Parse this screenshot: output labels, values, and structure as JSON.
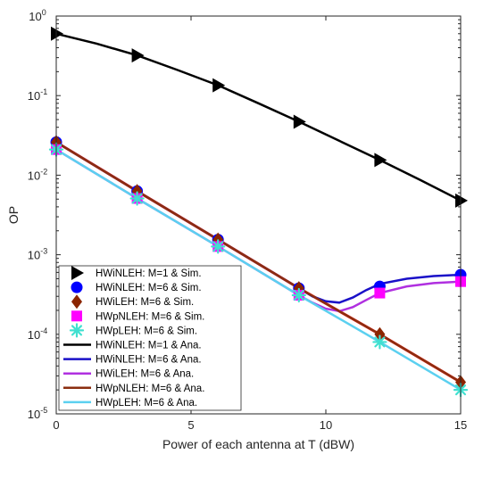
{
  "chart_data": {
    "type": "line",
    "xlabel": "Power of each antenna at T (dBW)",
    "ylabel": "OP",
    "xlim": [
      0,
      15
    ],
    "ylim": [
      1e-05,
      1
    ],
    "yscale": "log",
    "grid": false,
    "legend_position": "bottom-left",
    "x_ticks": [
      0,
      5,
      10,
      15
    ],
    "x_tick_labels": [
      "0",
      "5",
      "10",
      "15"
    ],
    "y_ticks": [
      {
        "value": 1,
        "base": "10",
        "exp": "0"
      },
      {
        "value": 0.1,
        "base": "10",
        "exp": "-1"
      },
      {
        "value": 0.01,
        "base": "10",
        "exp": "-2"
      },
      {
        "value": 0.001,
        "base": "10",
        "exp": "-3"
      },
      {
        "value": 0.0001,
        "base": "10",
        "exp": "-4"
      },
      {
        "value": 1e-05,
        "base": "10",
        "exp": "-5"
      }
    ],
    "marker_series": [
      {
        "name": "HWiNLEH: M=1 & Sim.",
        "marker": "triangle-right",
        "color": "#000000",
        "x": [
          0,
          3,
          6,
          9,
          12,
          15
        ],
        "y": [
          0.6,
          0.32,
          0.135,
          0.047,
          0.0155,
          0.0048
        ]
      },
      {
        "name": "HWiNLEH: M=6 & Sim.",
        "marker": "circle",
        "color": "#0000ff",
        "x": [
          0,
          3,
          6,
          9,
          12,
          15
        ],
        "y": [
          0.026,
          0.0063,
          0.00155,
          0.00038,
          0.0004,
          0.00056
        ]
      },
      {
        "name": "HWiLEH: M=6 & Sim.",
        "marker": "diamond",
        "color": "#8b2500",
        "x": [
          0,
          3,
          6,
          9,
          12,
          15
        ],
        "y": [
          0.026,
          0.0063,
          0.00155,
          0.00038,
          0.0001,
          2.5e-05
        ]
      },
      {
        "name": "HWpNLEH: M=6 & Sim.",
        "marker": "square",
        "color": "#ff00ff",
        "x": [
          0,
          3,
          6,
          9,
          12,
          15
        ],
        "y": [
          0.021,
          0.0051,
          0.00127,
          0.00031,
          0.00033,
          0.00046
        ]
      },
      {
        "name": "HWpLEH: M=6 & Sim.",
        "marker": "asterisk",
        "color": "#40e0d0",
        "x": [
          0,
          3,
          6,
          9,
          12,
          15
        ],
        "y": [
          0.021,
          0.0051,
          0.00127,
          0.00031,
          8e-05,
          2e-05
        ]
      }
    ],
    "line_series": [
      {
        "name": "HWiNLEH: M=1 & Ana.",
        "color": "#000000",
        "x": [
          0,
          1.5,
          3,
          4.5,
          6,
          7.5,
          9,
          10.5,
          12,
          13.5,
          15
        ],
        "y": [
          0.6,
          0.45,
          0.32,
          0.21,
          0.135,
          0.08,
          0.047,
          0.027,
          0.0155,
          0.0087,
          0.0048
        ]
      },
      {
        "name": "HWiNLEH: M=6 & Ana.",
        "color": "#1a10c8",
        "x": [
          0,
          3,
          6,
          9,
          9.5,
          10,
          10.5,
          11,
          11.5,
          12,
          13,
          14,
          15
        ],
        "y": [
          0.026,
          0.0063,
          0.00155,
          0.00038,
          0.0003,
          0.00026,
          0.00025,
          0.00029,
          0.00036,
          0.00043,
          0.0005,
          0.00054,
          0.00056
        ]
      },
      {
        "name": "HWiLEH: M=6 & Ana.",
        "color": "#b030e0",
        "x": [
          0,
          3,
          6,
          9,
          9.5,
          10,
          10.5,
          11,
          11.5,
          12,
          13,
          14,
          15
        ],
        "y": [
          0.021,
          0.0051,
          0.00127,
          0.00031,
          0.00025,
          0.00021,
          0.000195,
          0.00022,
          0.00027,
          0.00033,
          0.0004,
          0.00044,
          0.00046
        ]
      },
      {
        "name": "HWpNLEH: M=6 & Ana.",
        "color": "#8b2e10",
        "x": [
          0,
          3,
          6,
          9,
          12,
          15
        ],
        "y": [
          0.026,
          0.0063,
          0.00155,
          0.00038,
          0.0001,
          2.5e-05
        ]
      },
      {
        "name": "HWpLEH: M=6 & Ana.",
        "color": "#5bd0f0",
        "x": [
          0,
          3,
          6,
          9,
          12,
          15
        ],
        "y": [
          0.021,
          0.0051,
          0.00127,
          0.00031,
          8e-05,
          2e-05
        ]
      }
    ],
    "extra_lines": [
      {
        "color": "#ff1010",
        "x": [
          0,
          3,
          6,
          9,
          12,
          15
        ],
        "y": [
          0.026,
          0.0063,
          0.00155,
          0.00038,
          0.0001,
          2.5e-05
        ]
      }
    ]
  }
}
